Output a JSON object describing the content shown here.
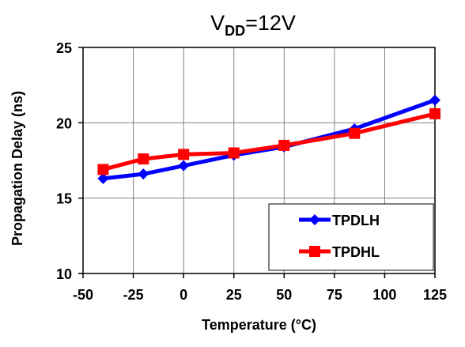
{
  "chart_data": {
    "type": "line",
    "title": {
      "prefix": "V",
      "subscript": "DD",
      "suffix": "=12V"
    },
    "xlabel": "Temperature (°C)",
    "ylabel": "Propagation Delay  (ns)",
    "xlim": [
      -50,
      125
    ],
    "ylim": [
      10,
      25
    ],
    "x_ticks": [
      -50,
      -25,
      0,
      25,
      50,
      75,
      100,
      125
    ],
    "y_ticks": [
      10,
      15,
      20,
      25
    ],
    "grid": true,
    "legend_position": "bottom-right",
    "series": [
      {
        "name": "TPDLH",
        "color": "#0000ff",
        "marker": "diamond",
        "x": [
          -40,
          -20,
          0,
          25,
          50,
          85,
          125
        ],
        "y": [
          16.3,
          16.6,
          17.15,
          17.85,
          18.4,
          19.6,
          21.5
        ]
      },
      {
        "name": "TPDHL",
        "color": "#ff0000",
        "marker": "square",
        "x": [
          -40,
          -20,
          0,
          25,
          50,
          85,
          125
        ],
        "y": [
          16.9,
          17.6,
          17.9,
          18.0,
          18.5,
          19.3,
          20.6
        ]
      }
    ]
  }
}
